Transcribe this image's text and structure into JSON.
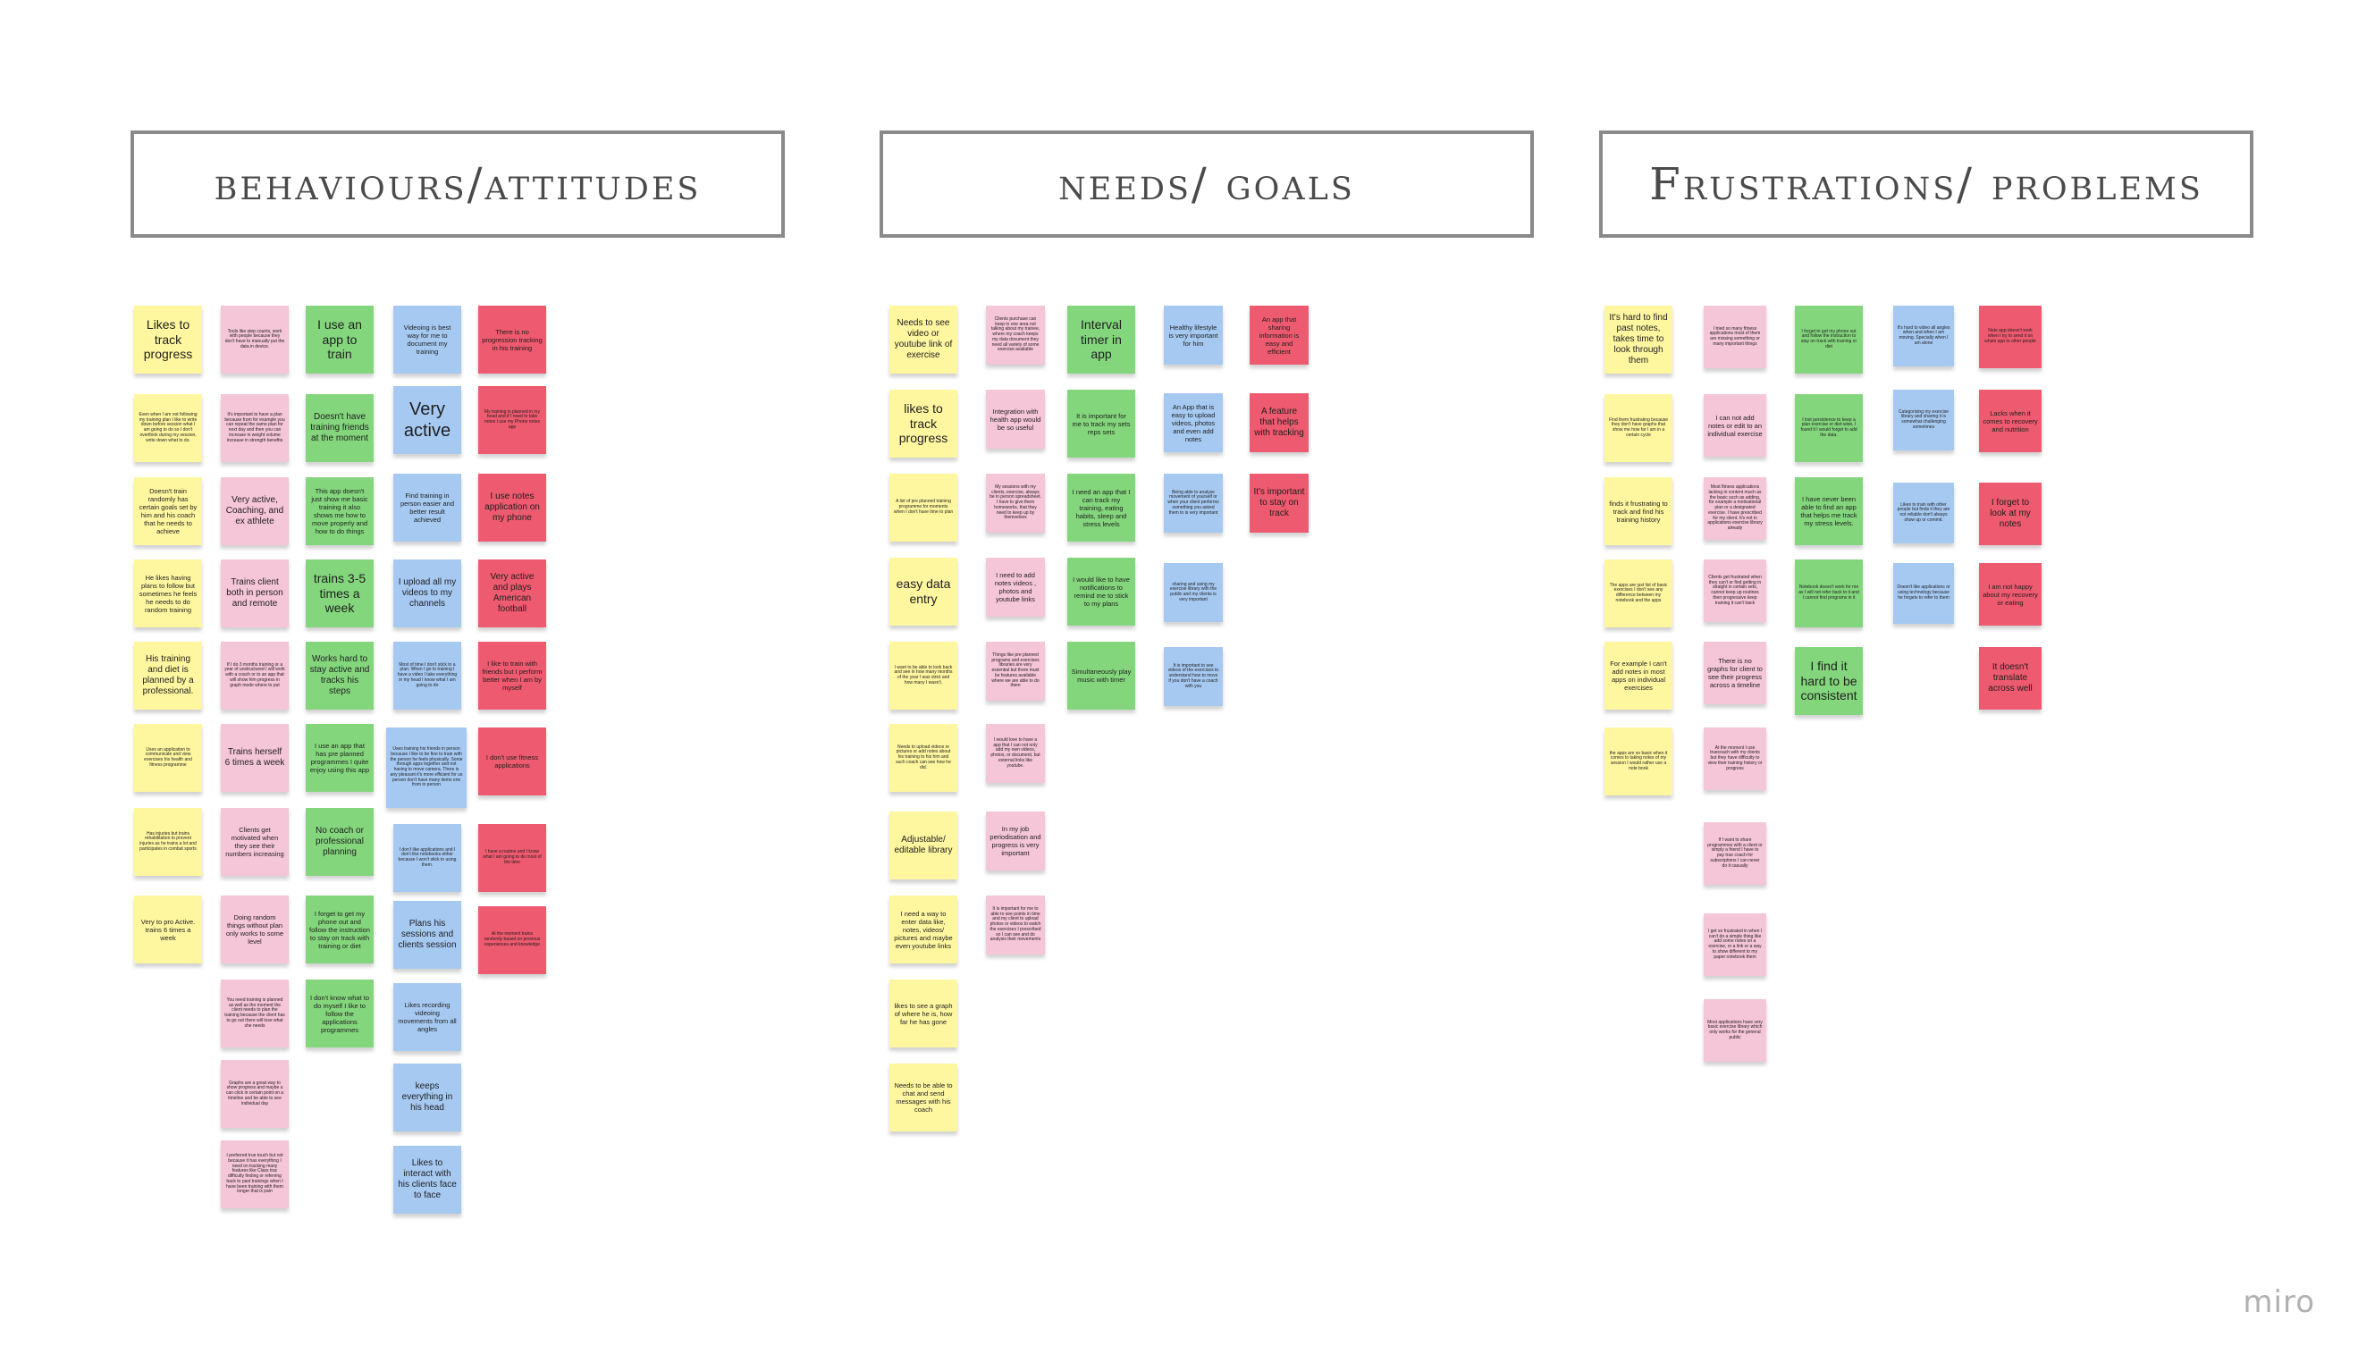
{
  "board": {
    "logo": "miro",
    "headers": {
      "behaviours": "behaviours/attitudes",
      "needs": "needs/ goals",
      "frustrations": "Frustrations/ problems"
    }
  },
  "behaviours": {
    "yellow": [
      "Likes to track progress",
      "Even when I am not following my training plan I like to write down before session what I am going to do so I don't overthink during my session, write down what to do.",
      "Doesn't train randomly has certain goals set by him and his coach that he needs to achieve",
      "He likes having plans to follow but sometimes he feels he needs to do random training",
      "His training and diet is planned by a professional.",
      "Uses an application to communicate and view exercises his health and fitness programme",
      "Has injuries but trains rehabilitation to prevent injuries as he trains a lot and participates in combat sports",
      "Very to pro Active. trains 6 times a week"
    ],
    "pink": [
      "Tools like step counts, work with people because they don't have to manually put the data in device.",
      "It's important to have a plan because from for example you can repeat the same plan for next day and then you can increase in weight volume increase in strength benefits",
      "Very active, Coaching, and ex athlete",
      "Trains client both in person and remote",
      "If I do 3 months training or a year of unstructured I will work with a coach or to an app that will show him progress in graph mode where to put",
      "Trains herself 6 times a week",
      "Clients get motivated when they see their numbers increasing",
      "Doing random things without plan only works to some level",
      "You need training is planned as well as the moment the client needs to plan the training because the client has to go out there will lose what she needs",
      "Graphs are a great way to show progress and maybe u can click in certain point on a timeline and be able to see individual day",
      "I preferred true touch but not because it has everything I need on tracking many features like Class trac difficulty finding or referring back to past trainings when I have been training with them longer that is pain"
    ],
    "green": [
      "I use an app to train",
      "Doesn't have training friends at the moment",
      "This app doesn't just show me basic training it also shows me how to move properly and how to do things",
      "trains 3-5 times a week",
      "Works hard to stay active and tracks his steps",
      "I use an app that has pre planned programmes I quite enjoy using this app",
      "No coach or professional planning",
      "I forget to get my phone out and follow the instruction to stay on track with training or diet",
      "I don't know what to do myself I like to follow the applications programmes"
    ],
    "blue": [
      "Videoing is best way for me to document my training",
      "Very active",
      "Find training in person easier and better result achieved",
      "I upload all my videos to my channels",
      "Most of time I don't stick to a plan. When I go to training I have a video I take everything in my head I know what I am going to do",
      "Uses training his friends in person because I like to be fine to train with the person he feels physically. Some through apps together and not having to move camera. There is any pleasant it's more efficient for us person don't have many items one from in person",
      "I don't like applications and I don't like notebooks either because I won't stick to using them.",
      "Plans his sessions and clients session",
      "Likes recording videoing movements from all angles",
      "keeps everything in his head",
      "Likes to interact with his clients face to face"
    ],
    "red": [
      "There is no progression tracking in his training",
      "My training is planned in my head and if I need to take notes I use my Phone notes app",
      "I use notes application on my phone",
      "Very active and plays American football",
      "I like to train with friends but I perform better when I am by myself",
      "I don't use fitness applications",
      "I have a routine and I know what I am going to do most of the time",
      "At the moment trains randomly based on previous experiences and knowledge"
    ]
  },
  "needs": {
    "yellow": [
      "Needs to see video or youtube link of exercise",
      "likes to track progress",
      "A list of pre planned training programme for moments when I don't have time to plan",
      "easy data entry",
      "I want to be able to look back and see in how many months of the year I was strict and how many I wasn't.",
      "Needs to upload videos or pictures or add notes about his training to his him and such coach can see how he did.",
      "Adjustable/ editable library",
      "I need a way to enter data like, notes, videos/ pictures and maybe even youtube links",
      "likes to see a graph of where he is, how far he has gone",
      "Needs to be able to chat and send messages with his coach"
    ],
    "pink": [
      "Clients purchase can keep in one area not talking about my trainee, where my coach keeps my data document they need all variety of some exercise available",
      "Integration with health app would be so useful",
      "My sessions with my clients, exercise, always be in person spreadsheet. I have to give them homeworks, that they need to keep up by themselves",
      "I need to add notes videos , photos and youtube links",
      "Things like pre planned programs and exercises libraries are very essential but there must be features available where we are able to do them",
      "I would love to have a app that I can not only add my own videos, photos, or document, but external links like youtube.",
      "In my job periodisation and progress is very important",
      "It is important for me to able to see points in time and my client to upload photos or videos to watch the exercises I prescribed so I can see and do analysis their movements"
    ],
    "green": [
      "Interval timer in app",
      "It is important for me to track my sets reps sets",
      "I need an app that I can track my training, eating habits, sleep and stress levels",
      "I would like to have notifications to remind me to stick to my plans",
      "Simultaneously play music with timer"
    ],
    "blue": [
      "Healthy lifestyle is very important for him",
      "An App that is easy to upload videos, photos and even add notes",
      "Being able to analyse movement of yourself or when your client performs something you asked them to is very important",
      "sharing and using my exercise library with the public and my clients is very important",
      "It is important to see videos of the exercises to understand how to move if you don't have a coach with you"
    ],
    "red": [
      "An app that sharing information is easy and efficient",
      "A feature that helps with tracking",
      "It's important to stay on track"
    ]
  },
  "frustrations": {
    "yellow": [
      "It's hard to find past notes, takes time to look through them",
      "Find them frustrating because they don't have graphs that show me how far I am in a certain cycle",
      "finds it frustrating to track and find his training history",
      "The apps are just list of basic exercises I don't see any difference between my notebook and the apps",
      "For example I can't add notes in most apps on individual exercises",
      "the apps are so basic when it comes to taking notes of my session I would rather use a note book"
    ],
    "pink": [
      "I tried so many fitness applications most of them are missing something or many important things",
      "I can not add notes or edit to an individual exercise",
      "Most fitness applications lacking in content much as the basic such as adding, for example a motivational plan or a designated exercise. I have prescribed for my client. It's not in applications exercise library already",
      "Clients get frustrated when they can't or find getting in straight in certain sets, cannot keep up routines then progressive keep training it can't track",
      "There is no graphs for client to see their progress across a timeline",
      "At the moment I use truecoach with my clients but they have difficulty to view their training history or progress",
      "If I want to share programmes with a client or simply a friend I have to pay true coach for subscriptions I can never do it casually",
      "I get so frustrated in when I can't do a simple thing like add some notes on a exercise, or a link or a way to show different to my paper notebook them",
      "Most applications have very basic exercise library which only works for the general public"
    ],
    "green": [
      "I forget to get my phone out and follow the instruction to stay on track with training or diet",
      "I lost persistence to keep a plan exercise or diet-wise, I found it I would forget to add the data.",
      "I have never been able to find an app that helps me track my stress levels.",
      "Notebook doesn't work for me as I will not refer back to it and I cannot find programs in it",
      "I find it hard to be consistent"
    ],
    "blue": [
      "It's hard to video all angles when and when I am moving. Specially when I am alone",
      "Categorising my exercise library and sharing it is somewhat challenging sometimes",
      "Likes to train with other people but finds it they are not reliable don't always show up or commit.",
      "Doesn't like applications or using technology because he forgets to refer to them"
    ],
    "red": [
      "Note app doesn't work when I try to send it on whats app to other people",
      "Lacks when it comes to recovery and nutrition",
      "I forget to look at my notes",
      "I am not happy about my recovery or eating",
      "It doesn't translate across well"
    ]
  }
}
